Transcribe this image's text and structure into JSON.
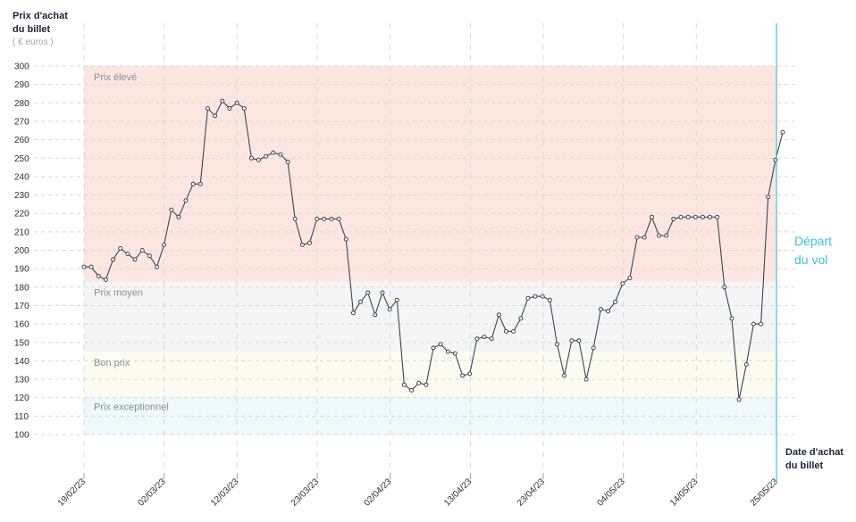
{
  "chart_data": {
    "type": "line",
    "y_axis": {
      "title_lines": [
        "Prix d'achat",
        "du billet"
      ],
      "unit": "( € euros )",
      "ylim": [
        100,
        300
      ],
      "ticks": [
        100,
        110,
        120,
        130,
        140,
        150,
        160,
        170,
        180,
        190,
        200,
        210,
        220,
        230,
        240,
        250,
        260,
        270,
        280,
        290,
        300
      ]
    },
    "x_axis": {
      "title_lines": [
        "Date d'achat",
        "du billet"
      ],
      "start": "2023-02-19",
      "end": "2023-05-25",
      "tick_labels": [
        "19/02/23",
        "02/03/23",
        "12/03/23",
        "23/03/23",
        "02/04/23",
        "13/04/23",
        "23/04/23",
        "04/05/23",
        "14/05/23",
        "25/05/23"
      ]
    },
    "zones": [
      {
        "label": "Prix élevé",
        "from": 183,
        "to": 300,
        "color": "#fde6df"
      },
      {
        "label": "Prix moyen",
        "from": 145,
        "to": 183,
        "color": "#f5f5f6"
      },
      {
        "label": "Bon prix",
        "from": 121,
        "to": 145,
        "color": "#fbfcef"
      },
      {
        "label": "Prix exceptionnel",
        "from": 100,
        "to": 121,
        "color": "#eff8fb"
      }
    ],
    "departure": {
      "label_lines": [
        "Départ",
        "du vol"
      ],
      "color": "#3fc2d8"
    },
    "series": [
      {
        "color": "#3c4556",
        "values": [
          191,
          191,
          186,
          184,
          195,
          201,
          198,
          195,
          200,
          197,
          191,
          203,
          222,
          218,
          227,
          236,
          236,
          277,
          273,
          281,
          277,
          280,
          277,
          250,
          249,
          251,
          253,
          252,
          248,
          217,
          203,
          204,
          217,
          217,
          217,
          217,
          206,
          166,
          172,
          177,
          165,
          177,
          168,
          173,
          127,
          124,
          128,
          127,
          147,
          149,
          145,
          144,
          132,
          133,
          152,
          153,
          152,
          165,
          156,
          156,
          163,
          174,
          175,
          175,
          173,
          149,
          132,
          151,
          151,
          130,
          147,
          168,
          167,
          172,
          182,
          185,
          207,
          207,
          218,
          208,
          208,
          217,
          218,
          218,
          218,
          218,
          218,
          218,
          180,
          163,
          119,
          138,
          160,
          160,
          229,
          249,
          264
        ]
      }
    ]
  }
}
